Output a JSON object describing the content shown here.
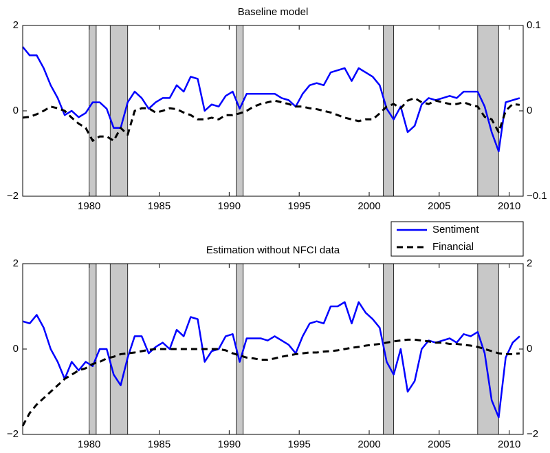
{
  "chart_data": [
    {
      "type": "line",
      "title": "Baseline model",
      "x": [
        1975.25,
        1975.75,
        1976.25,
        1976.75,
        1977.25,
        1977.75,
        1978.25,
        1978.75,
        1979.25,
        1979.75,
        1980.25,
        1980.75,
        1981.25,
        1981.75,
        1982.25,
        1982.75,
        1983.25,
        1983.75,
        1984.25,
        1984.75,
        1985.25,
        1985.75,
        1986.25,
        1986.75,
        1987.25,
        1987.75,
        1988.25,
        1988.75,
        1989.25,
        1989.75,
        1990.25,
        1990.75,
        1991.25,
        1991.75,
        1992.25,
        1992.75,
        1993.25,
        1993.75,
        1994.25,
        1994.75,
        1995.25,
        1995.75,
        1996.25,
        1996.75,
        1997.25,
        1997.75,
        1998.25,
        1998.75,
        1999.25,
        1999.75,
        2000.25,
        2000.75,
        2001.25,
        2001.75,
        2002.25,
        2002.75,
        2003.25,
        2003.75,
        2004.25,
        2004.75,
        2005.25,
        2005.75,
        2006.25,
        2006.75,
        2007.25,
        2007.75,
        2008.25,
        2008.75,
        2009.25,
        2009.75,
        2010.25,
        2010.75
      ],
      "series": [
        {
          "color": "#0000ff",
          "line_style": "solid",
          "axis": "y",
          "values": [
            1.5,
            1.3,
            1.3,
            1.0,
            0.6,
            0.3,
            -0.1,
            0.0,
            -0.15,
            -0.05,
            0.2,
            0.2,
            0.05,
            -0.4,
            -0.4,
            0.2,
            0.45,
            0.3,
            0.05,
            0.2,
            0.3,
            0.3,
            0.6,
            0.45,
            0.8,
            0.75,
            0.0,
            0.15,
            0.1,
            0.35,
            0.45,
            0.05,
            0.4,
            0.4,
            0.4,
            0.4,
            0.4,
            0.3,
            0.25,
            0.1,
            0.4,
            0.6,
            0.65,
            0.6,
            0.9,
            0.95,
            1.0,
            0.7,
            1.0,
            0.9,
            0.8,
            0.6,
            0.05,
            -0.2,
            0.1,
            -0.5,
            -0.35,
            0.15,
            0.3,
            0.25,
            0.3,
            0.35,
            0.3,
            0.45,
            0.45,
            0.45,
            0.1,
            -0.5,
            -0.95,
            0.2,
            0.25,
            0.3
          ]
        },
        {
          "color": "#000000",
          "line_style": "dashed",
          "axis": "y2",
          "values": [
            -0.008,
            -0.007,
            -0.004,
            0,
            0.005,
            0.003,
            0,
            -0.008,
            -0.015,
            -0.02,
            -0.035,
            -0.03,
            -0.03,
            -0.035,
            -0.02,
            -0.028,
            0,
            0.003,
            0.003,
            -0.002,
            0,
            0.003,
            0.002,
            -0.002,
            -0.005,
            -0.01,
            -0.01,
            -0.008,
            -0.01,
            -0.005,
            -0.005,
            -0.003,
            0,
            0.005,
            0.008,
            0.01,
            0.012,
            0.01,
            0.008,
            0.005,
            0.005,
            0.003,
            0.002,
            0,
            -0.002,
            -0.005,
            -0.008,
            -0.01,
            -0.012,
            -0.01,
            -0.01,
            -0.003,
            0.005,
            0.008,
            0.003,
            0.012,
            0.015,
            0.01,
            0.008,
            0.012,
            0.01,
            0.008,
            0.008,
            0.01,
            0.007,
            0.005,
            -0.007,
            -0.01,
            -0.025,
            0,
            0.008,
            0.007
          ]
        }
      ],
      "shaded_x": [
        [
          1980.0,
          1980.5
        ],
        [
          1981.5,
          1982.75
        ],
        [
          1990.5,
          1991.0
        ],
        [
          2001.0,
          2001.75
        ],
        [
          2007.75,
          2009.25
        ]
      ],
      "xlim": [
        1975.25,
        2011
      ],
      "xticks": [
        1980,
        1985,
        1990,
        1995,
        2000,
        2005,
        2010
      ],
      "ylim": [
        -2,
        2
      ],
      "yticks": [
        {
          "value": -2,
          "label": "−2"
        },
        0,
        2
      ],
      "y2lim": [
        -0.1,
        0.1
      ],
      "y2ticks": [
        {
          "value": -0.1,
          "label": "−0.1"
        },
        0,
        0.1
      ]
    },
    {
      "type": "line",
      "title": "Estimation without NFCI data",
      "legend": "above right",
      "x": [
        1975.25,
        1975.75,
        1976.25,
        1976.75,
        1977.25,
        1977.75,
        1978.25,
        1978.75,
        1979.25,
        1979.75,
        1980.25,
        1980.75,
        1981.25,
        1981.75,
        1982.25,
        1982.75,
        1983.25,
        1983.75,
        1984.25,
        1984.75,
        1985.25,
        1985.75,
        1986.25,
        1986.75,
        1987.25,
        1987.75,
        1988.25,
        1988.75,
        1989.25,
        1989.75,
        1990.25,
        1990.75,
        1991.25,
        1991.75,
        1992.25,
        1992.75,
        1993.25,
        1993.75,
        1994.25,
        1994.75,
        1995.25,
        1995.75,
        1996.25,
        1996.75,
        1997.25,
        1997.75,
        1998.25,
        1998.75,
        1999.25,
        1999.75,
        2000.25,
        2000.75,
        2001.25,
        2001.75,
        2002.25,
        2002.75,
        2003.25,
        2003.75,
        2004.25,
        2004.75,
        2005.25,
        2005.75,
        2006.25,
        2006.75,
        2007.25,
        2007.75,
        2008.25,
        2008.75,
        2009.25,
        2009.75,
        2010.25,
        2010.75
      ],
      "series": [
        {
          "name": "Sentiment",
          "color": "#0000ff",
          "line_style": "solid",
          "axis": "y",
          "values": [
            0.65,
            0.6,
            0.8,
            0.5,
            0.0,
            -0.3,
            -0.7,
            -0.3,
            -0.5,
            -0.3,
            -0.4,
            0.0,
            0.0,
            -0.6,
            -0.85,
            -0.2,
            0.3,
            0.3,
            -0.1,
            0.05,
            0.15,
            0.0,
            0.45,
            0.3,
            0.75,
            0.7,
            -0.3,
            -0.05,
            0.0,
            0.3,
            0.35,
            -0.3,
            0.25,
            0.25,
            0.25,
            0.2,
            0.3,
            0.2,
            0.1,
            -0.1,
            0.3,
            0.6,
            0.65,
            0.6,
            1.0,
            1.0,
            1.1,
            0.6,
            1.1,
            0.85,
            0.7,
            0.5,
            -0.3,
            -0.6,
            0.0,
            -1.0,
            -0.75,
            0.0,
            0.2,
            0.15,
            0.2,
            0.25,
            0.15,
            0.35,
            0.3,
            0.4,
            -0.1,
            -1.2,
            -1.6,
            -0.2,
            0.15,
            0.3
          ]
        },
        {
          "name": "Financial",
          "color": "#000000",
          "line_style": "dashed",
          "axis": "y2",
          "values": [
            -1.8,
            -1.5,
            -1.3,
            -1.15,
            -1.0,
            -0.85,
            -0.7,
            -0.6,
            -0.5,
            -0.45,
            -0.35,
            -0.3,
            -0.22,
            -0.18,
            -0.12,
            -0.1,
            -0.08,
            -0.05,
            -0.02,
            0,
            0,
            0,
            0,
            0,
            0,
            0,
            0,
            0,
            0,
            -0.03,
            -0.1,
            -0.15,
            -0.2,
            -0.22,
            -0.25,
            -0.25,
            -0.22,
            -0.18,
            -0.15,
            -0.12,
            -0.1,
            -0.08,
            -0.08,
            -0.06,
            -0.05,
            -0.03,
            0,
            0.03,
            0.05,
            0.08,
            0.1,
            0.12,
            0.15,
            0.18,
            0.2,
            0.22,
            0.22,
            0.2,
            0.18,
            0.15,
            0.15,
            0.12,
            0.12,
            0.1,
            0.08,
            0.05,
            0,
            -0.05,
            -0.1,
            -0.12,
            -0.12,
            -0.1
          ]
        }
      ],
      "shaded_x": [
        [
          1980.0,
          1980.5
        ],
        [
          1981.5,
          1982.75
        ],
        [
          1990.5,
          1991.0
        ],
        [
          2001.0,
          2001.75
        ],
        [
          2007.75,
          2009.25
        ]
      ],
      "xlim": [
        1975.25,
        2011
      ],
      "xticks": [
        1980,
        1985,
        1990,
        1995,
        2000,
        2005,
        2010
      ],
      "ylim": [
        -2,
        2
      ],
      "yticks": [
        {
          "value": -2,
          "label": "−2"
        },
        0,
        2
      ],
      "y2lim": [
        -2,
        2
      ],
      "y2ticks": [
        {
          "value": -2,
          "label": "−2"
        },
        0,
        2
      ]
    }
  ]
}
